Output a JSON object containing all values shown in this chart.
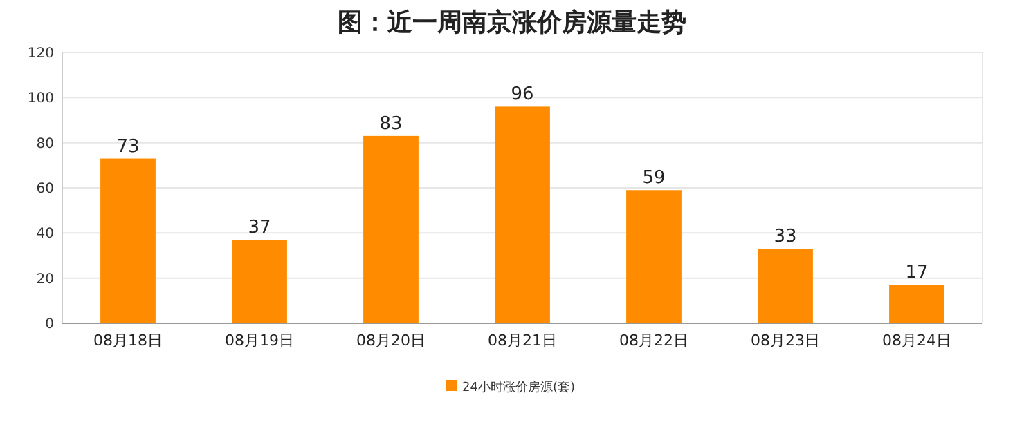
{
  "chart_data": {
    "type": "bar",
    "title": "图：近一周南京涨价房源量走势",
    "categories": [
      "08月18日",
      "08月19日",
      "08月20日",
      "08月21日",
      "08月22日",
      "08月23日",
      "08月24日"
    ],
    "series": [
      {
        "name": "24小时涨价房源(套)",
        "color": "#ff8c00",
        "values": [
          73,
          37,
          83,
          96,
          59,
          33,
          17
        ]
      }
    ],
    "ylim": [
      0,
      120
    ],
    "yticks": [
      0,
      20,
      40,
      60,
      80,
      100,
      120
    ],
    "grid": "y",
    "legend": "bottom",
    "data_labels": true
  }
}
